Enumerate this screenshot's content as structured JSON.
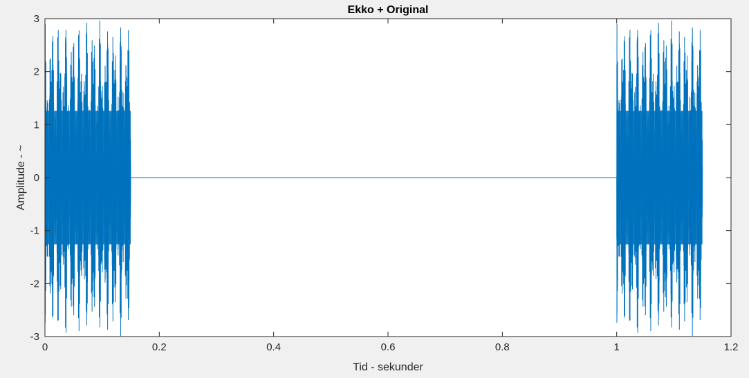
{
  "chart_data": {
    "type": "line",
    "title": "Ekko + Original",
    "xlabel": "Tid - sekunder",
    "ylabel": "Amplitude - ~",
    "xlim": [
      0,
      1.2
    ],
    "ylim": [
      -3,
      3
    ],
    "xticks": [
      0,
      0.2,
      0.4,
      0.6,
      0.8,
      1,
      1.2
    ],
    "yticks": [
      -3,
      -2,
      -1,
      0,
      1,
      2,
      3
    ],
    "x_tick_labels": [
      "0",
      "0.2",
      "0.4",
      "0.6",
      "0.8",
      "1",
      "1.2"
    ],
    "y_tick_labels": [
      "-3",
      "-2",
      "-1",
      "0",
      "1",
      "2",
      "3"
    ],
    "grid": false,
    "series": [
      {
        "color": "#0072bd",
        "description_segments": [
          {
            "x_start": 0.0,
            "x_end": 0.15,
            "kind": "oscillation",
            "amplitude": 3
          },
          {
            "x_start": 0.15,
            "x_end": 1.0,
            "kind": "constant",
            "value": 0
          },
          {
            "x_start": 1.0,
            "x_end": 1.15,
            "kind": "oscillation",
            "amplitude": 3
          }
        ]
      }
    ]
  }
}
